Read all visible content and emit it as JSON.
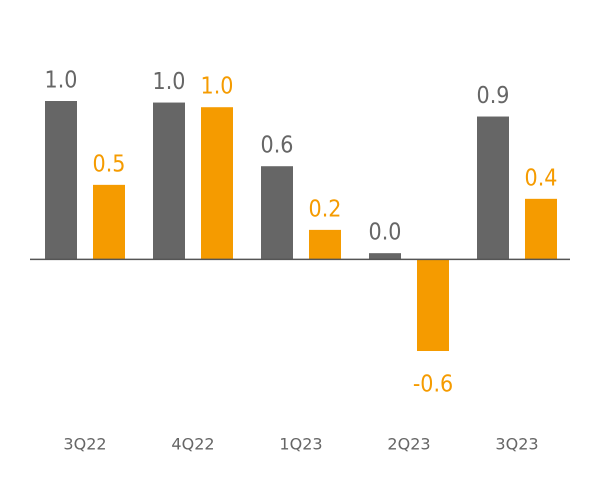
{
  "chart_data": {
    "type": "bar",
    "categories": [
      "3Q22",
      "4Q22",
      "1Q23",
      "2Q23",
      "3Q23"
    ],
    "series": [
      {
        "color": "#666666",
        "values": [
          1.02,
          1.01,
          0.6,
          0.04,
          0.92
        ],
        "value_labels": [
          "1.0",
          "1.0",
          "0.6",
          "0.0",
          "0.9"
        ]
      },
      {
        "color": "#f59b00",
        "values": [
          0.48,
          0.98,
          0.19,
          -0.59,
          0.39
        ],
        "value_labels": [
          "0.5",
          "1.0",
          "0.2",
          "-0.6",
          "0.4"
        ]
      }
    ]
  }
}
